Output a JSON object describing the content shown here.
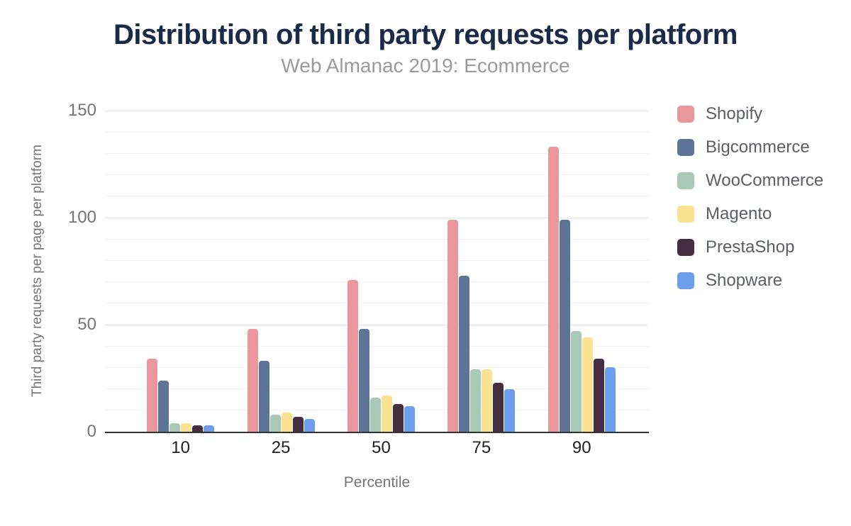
{
  "figure": {
    "title": "Distribution of third party requests per platform",
    "subtitle": "Web Almanac 2019: Ecommerce"
  },
  "colors": {
    "title": "#1a2b49",
    "subtitle": "#9a9a9a",
    "axis_text": "#757575",
    "tick_text": "#212121",
    "legend_text": "#5b5e63",
    "axis_line": "#333333",
    "grid_major": "#e4e4e4",
    "grid_minor": "#f3f3f3",
    "background": "#ffffff"
  },
  "chart_data": {
    "type": "bar",
    "title": "Distribution of third party requests per platform",
    "subtitle": "Web Almanac 2019: Ecommerce",
    "xlabel": "Percentile",
    "ylabel": "Third party requests per page per platform",
    "categories": [
      "10",
      "25",
      "50",
      "75",
      "90"
    ],
    "series": [
      {
        "name": "Shopify",
        "color": "#e9969d",
        "values": [
          34,
          48,
          71,
          99,
          133
        ]
      },
      {
        "name": "Bigcommerce",
        "color": "#5e7496",
        "values": [
          24,
          33,
          48,
          73,
          99
        ]
      },
      {
        "name": "WooCommerce",
        "color": "#a9c9b7",
        "values": [
          4,
          8,
          16,
          29,
          47
        ]
      },
      {
        "name": "Magento",
        "color": "#fbe291",
        "values": [
          4,
          9,
          17,
          29,
          44
        ]
      },
      {
        "name": "PrestaShop",
        "color": "#452e41",
        "values": [
          3,
          7,
          13,
          23,
          34
        ]
      },
      {
        "name": "Shopware",
        "color": "#6d9eec",
        "values": [
          3,
          6,
          12,
          20,
          30
        ]
      }
    ],
    "ylim": [
      0,
      150
    ],
    "yticks": [
      0,
      50,
      100,
      150
    ],
    "minor_grid_step": 10,
    "grid": true,
    "legend_position": "right"
  }
}
